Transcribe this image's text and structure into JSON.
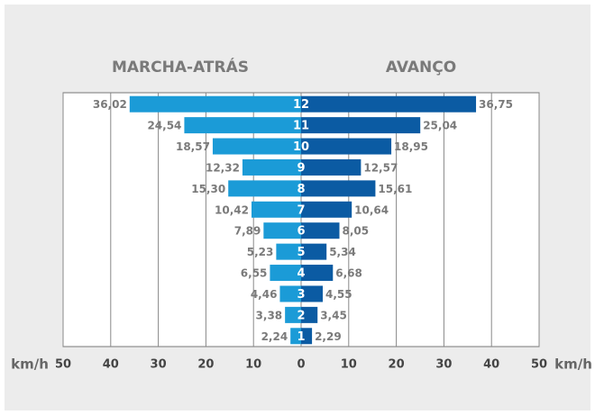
{
  "chart_data": {
    "type": "bar",
    "categories": [
      "12",
      "11",
      "10",
      "9",
      "8",
      "7",
      "6",
      "5",
      "4",
      "3",
      "2",
      "1"
    ],
    "series": [
      {
        "name": "MARCHA-ATRÁS",
        "color": "#1b9bd7",
        "values": [
          36.02,
          24.54,
          18.57,
          12.32,
          15.3,
          10.42,
          7.89,
          5.23,
          6.55,
          4.46,
          3.38,
          2.24
        ],
        "value_labels": [
          "36,02",
          "24,54",
          "18,57",
          "12,32",
          "15,30",
          "10,42",
          "7,89",
          "5,23",
          "6,55",
          "4,46",
          "3,38",
          "2,24"
        ]
      },
      {
        "name": "AVANÇO",
        "color": "#0b5ba3",
        "values": [
          36.75,
          25.04,
          18.95,
          12.57,
          15.61,
          10.64,
          8.05,
          5.34,
          6.68,
          4.55,
          3.45,
          2.29
        ],
        "value_labels": [
          "36,75",
          "25,04",
          "18,95",
          "12,57",
          "15,61",
          "10,64",
          "8,05",
          "5,34",
          "6,68",
          "4,55",
          "3,45",
          "2,29"
        ]
      }
    ],
    "xlabel": "km/h",
    "xlim": [
      0,
      50
    ],
    "xticks": [
      0,
      10,
      20,
      30,
      40,
      50
    ],
    "grid": true
  }
}
